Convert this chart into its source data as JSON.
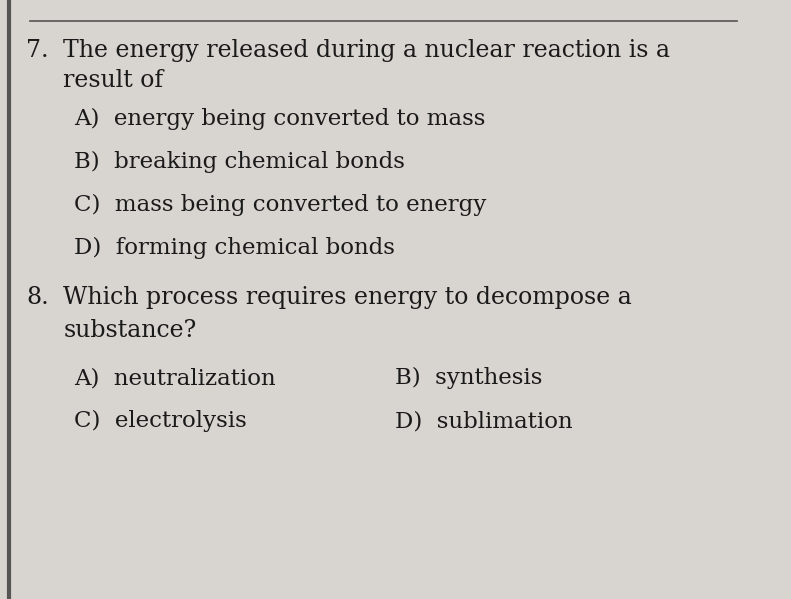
{
  "background_color": "#d8d4d0",
  "top_line_color": "#555555",
  "text_color": "#1a1a1a",
  "q7_number": "7.",
  "q7_line1": "The energy released during a nuclear reaction is a",
  "q7_line2": "result of",
  "q7_options": [
    "A)  energy being converted to mass",
    "B)  breaking chemical bonds",
    "C)  mass being converted to energy",
    "D)  forming chemical bonds"
  ],
  "q8_number": "8.",
  "q8_line1": "Which process requires energy to decompose a",
  "q8_line2": "substance?",
  "q8_options_left": [
    "A)  neutralization",
    "C)  electrolysis"
  ],
  "q8_options_right": [
    "B)  synthesis",
    "D)  sublimation"
  ],
  "left_bar_color": "#555555",
  "fontsize_question": 17,
  "fontsize_option": 16.5,
  "fontsize_number": 17
}
